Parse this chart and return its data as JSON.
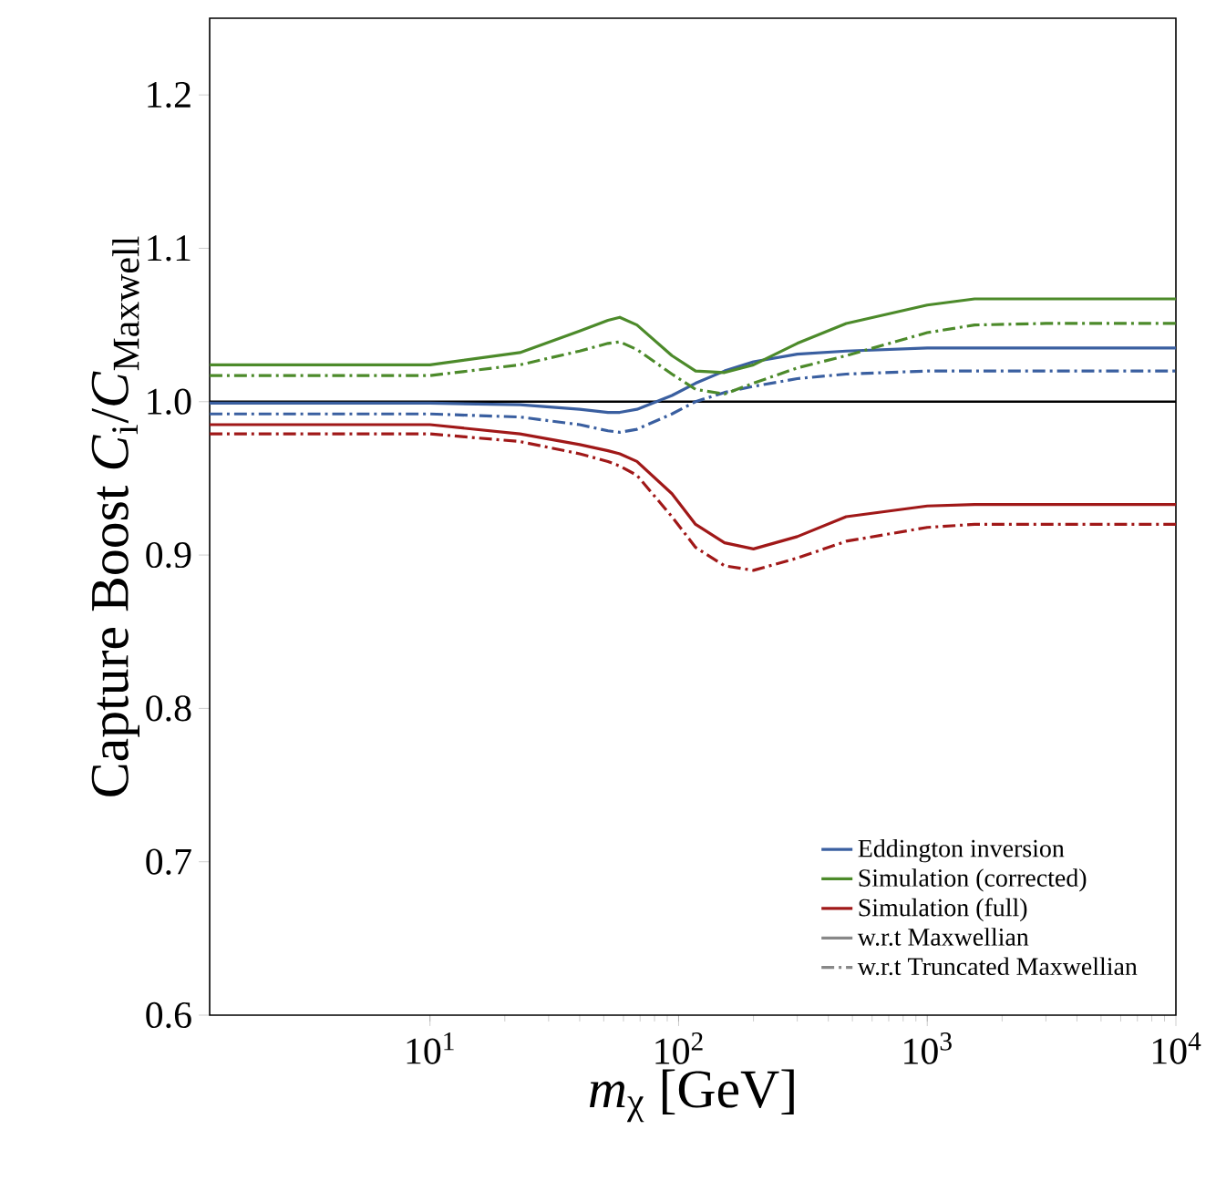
{
  "chart_data": {
    "type": "line",
    "xlabel": "*m*$_{χ}$ [GeV]",
    "ylabel": "Capture Boost *C*$_{i}$/*C*$_{Maxwell}$",
    "x": [
      1.3,
      10,
      23,
      40,
      52,
      58,
      68,
      94,
      117,
      153,
      200,
      300,
      472,
      1000,
      1550,
      3000,
      10000
    ],
    "log": "x",
    "xlim": [
      1.3,
      10000
    ],
    "ylim": [
      0.6,
      1.25
    ],
    "xticks": [
      {
        "value": 10,
        "label": "10$^{1}$"
      },
      {
        "value": 100,
        "label": "10$^{2}$"
      },
      {
        "value": 1000,
        "label": "10$^{3}$"
      },
      {
        "value": 10000,
        "label": "10$^{4}$"
      }
    ],
    "yticks": [
      {
        "value": 0.6,
        "label": "0.6"
      },
      {
        "value": 0.7,
        "label": "0.7"
      },
      {
        "value": 0.8,
        "label": "0.8"
      },
      {
        "value": 0.9,
        "label": "0.9"
      },
      {
        "value": 1.0,
        "label": "1.0"
      },
      {
        "value": 1.1,
        "label": "1.1"
      },
      {
        "value": 1.2,
        "label": "1.2"
      }
    ],
    "legend": "bottom right",
    "ref_lines": [
      {
        "axis": "y",
        "value": 1.0,
        "color": "#000000"
      }
    ],
    "series": [
      {
        "name": "Eddington inversion",
        "color": "#3a5fa0",
        "line_style": "solid",
        "values": [
          0.999,
          0.999,
          0.998,
          0.995,
          0.993,
          0.993,
          0.995,
          1.004,
          1.012,
          1.02,
          1.026,
          1.031,
          1.033,
          1.035,
          1.035,
          1.035,
          1.035
        ]
      },
      {
        "name": "Simulation (corrected)",
        "color": "#4c8a2a",
        "line_style": "solid",
        "values": [
          1.024,
          1.024,
          1.032,
          1.046,
          1.053,
          1.055,
          1.05,
          1.03,
          1.02,
          1.019,
          1.024,
          1.038,
          1.051,
          1.063,
          1.067,
          1.067,
          1.067
        ]
      },
      {
        "name": "Simulation (full)",
        "color": "#a01818",
        "line_style": "solid",
        "values": [
          0.985,
          0.985,
          0.979,
          0.972,
          0.968,
          0.966,
          0.961,
          0.94,
          0.92,
          0.908,
          0.904,
          0.912,
          0.925,
          0.932,
          0.933,
          0.933,
          0.933
        ]
      },
      {
        "color": "#3a5fa0",
        "line_style": "dashdot",
        "values": [
          0.992,
          0.992,
          0.99,
          0.985,
          0.981,
          0.98,
          0.982,
          0.992,
          1.0,
          1.006,
          1.01,
          1.015,
          1.018,
          1.02,
          1.02,
          1.02,
          1.02
        ]
      },
      {
        "color": "#4c8a2a",
        "line_style": "dashdot",
        "values": [
          1.017,
          1.017,
          1.024,
          1.033,
          1.038,
          1.039,
          1.034,
          1.018,
          1.008,
          1.005,
          1.012,
          1.022,
          1.03,
          1.045,
          1.05,
          1.051,
          1.051
        ]
      },
      {
        "color": "#a01818",
        "line_style": "dashdot",
        "values": [
          0.979,
          0.979,
          0.974,
          0.966,
          0.961,
          0.958,
          0.952,
          0.925,
          0.905,
          0.893,
          0.89,
          0.898,
          0.909,
          0.918,
          0.92,
          0.92,
          0.92
        ]
      },
      {
        "name": "w.r.t Maxwellian",
        "color": "#888888",
        "line_style": "solid",
        "values": [
          null,
          null,
          null,
          null,
          null,
          null,
          null,
          null,
          null,
          null,
          null,
          null,
          null,
          null,
          null,
          null,
          null
        ]
      },
      {
        "name": "w.r.t Truncated Maxwellian",
        "color": "#888888",
        "line_style": "dashdot",
        "values": [
          null,
          null,
          null,
          null,
          null,
          null,
          null,
          null,
          null,
          null,
          null,
          null,
          null,
          null,
          null,
          null,
          null
        ]
      }
    ]
  }
}
